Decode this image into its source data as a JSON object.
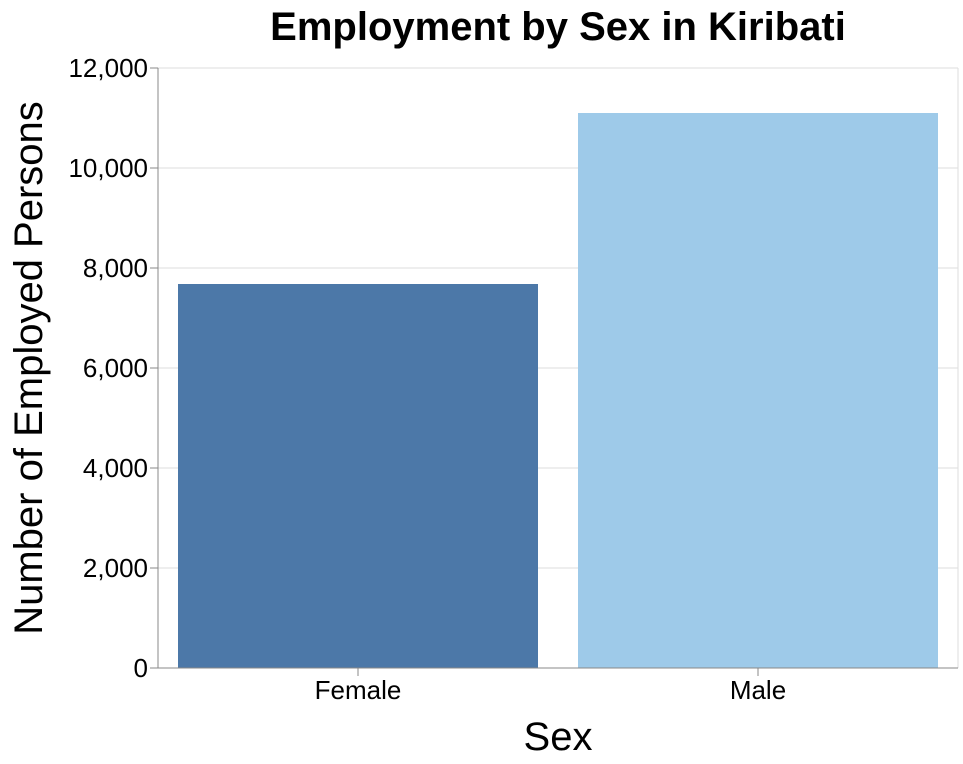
{
  "chart_data": {
    "type": "bar",
    "title": "Employment by Sex in Kiribati",
    "xlabel": "Sex",
    "ylabel": "Number of Employed Persons",
    "categories": [
      "Female",
      "Male"
    ],
    "values": [
      7680,
      11100
    ],
    "bar_colors": [
      "#4c78a8",
      "#9ecae9"
    ],
    "ylim": [
      0,
      12000
    ],
    "yticks": [
      0,
      2000,
      4000,
      6000,
      8000,
      10000,
      12000
    ],
    "ytick_labels": [
      "0",
      "2,000",
      "4,000",
      "6,000",
      "8,000",
      "10,000",
      "12,000"
    ],
    "grid": true,
    "legend": "none"
  }
}
